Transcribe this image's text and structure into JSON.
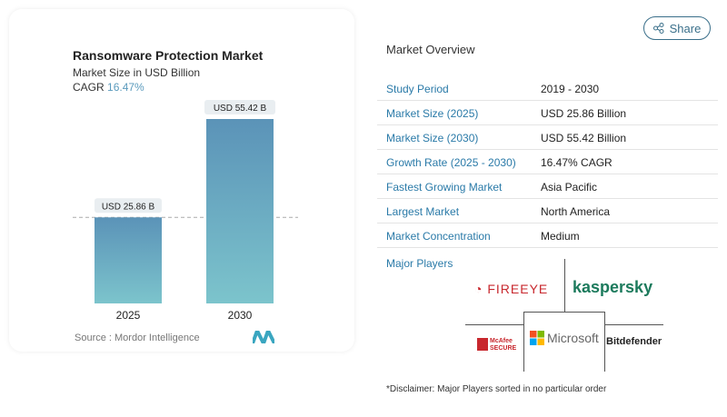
{
  "chart_data": {
    "type": "bar",
    "title": "Ransomware Protection Market",
    "subtitle": "Market Size in USD Billion",
    "cagr_label": "CAGR",
    "cagr_value": "16.47%",
    "categories": [
      "2025",
      "2030"
    ],
    "values": [
      25.86,
      55.42
    ],
    "data_labels": [
      "USD 25.86 B",
      "USD 55.42 B"
    ],
    "colors": {
      "top": "#5b93b8",
      "bottom": "#7cc4cc"
    },
    "source": "Source :  Mordor Intelligence",
    "grid": false
  },
  "share_label": "Share",
  "overview": {
    "title": "Market Overview",
    "rows": [
      {
        "k": "Study Period",
        "v": "2019 - 2030"
      },
      {
        "k": "Market Size (2025)",
        "v": "USD 25.86 Billion"
      },
      {
        "k": "Market Size (2030)",
        "v": "USD 55.42 Billion"
      },
      {
        "k": "Growth Rate (2025 - 2030)",
        "v": "16.47% CAGR"
      },
      {
        "k": "Fastest Growing Market",
        "v": "Asia Pacific"
      },
      {
        "k": "Largest Market",
        "v": "North America"
      },
      {
        "k": "Market Concentration",
        "v": "Medium"
      }
    ]
  },
  "players": {
    "title": "Major Players",
    "logos": [
      "FIREEYE",
      "kaspersky",
      "McAfee SECURE",
      "Microsoft",
      "Bitdefender"
    ]
  },
  "disclaimer": "*Disclaimer: Major Players sorted in no particular order"
}
